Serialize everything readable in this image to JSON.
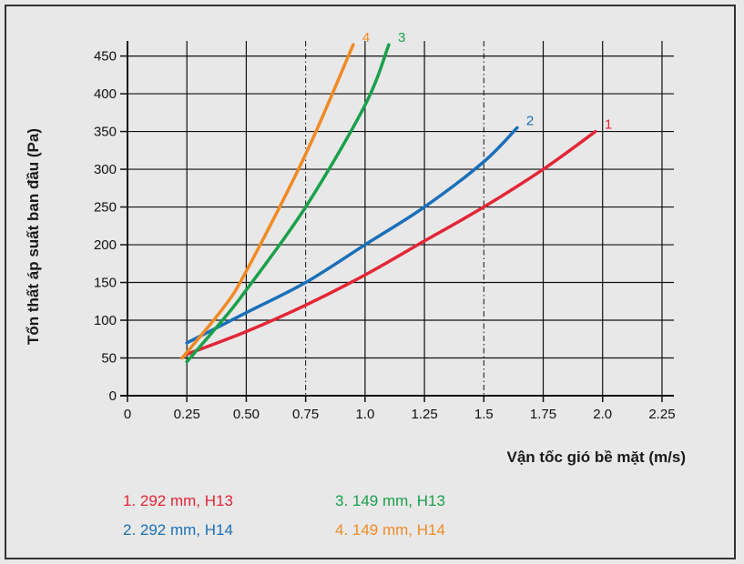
{
  "chart_data": {
    "type": "line",
    "title": "",
    "xlabel": "Vận tốc gió bề mặt (m/s)",
    "ylabel": "Tổn thất áp suất ban đầu (Pa)",
    "xlim": [
      0,
      2.3
    ],
    "ylim": [
      0,
      470
    ],
    "x_ticks": [
      "0",
      "0.25",
      "0.50",
      "0.75",
      "1.0",
      "1.25",
      "1.5",
      "1.75",
      "2.0",
      "2.25"
    ],
    "x_tick_values": [
      0,
      0.25,
      0.5,
      0.75,
      1.0,
      1.25,
      1.5,
      1.75,
      2.0,
      2.25
    ],
    "y_ticks": [
      "0",
      "50",
      "100",
      "150",
      "200",
      "250",
      "300",
      "350",
      "400",
      "450"
    ],
    "y_tick_values": [
      0,
      50,
      100,
      150,
      200,
      250,
      300,
      350,
      400,
      450
    ],
    "dashed_x": [
      0.75,
      1.5
    ],
    "grid": true,
    "series": [
      {
        "label": "1",
        "color": "#e32636",
        "x": [
          0.25,
          0.5,
          0.75,
          1.0,
          1.25,
          1.5,
          1.75,
          1.97
        ],
        "y": [
          55,
          85,
          120,
          160,
          205,
          250,
          300,
          350
        ]
      },
      {
        "label": "2",
        "color": "#1a6fb9",
        "x": [
          0.25,
          0.5,
          0.75,
          1.0,
          1.25,
          1.5,
          1.64
        ],
        "y": [
          70,
          110,
          150,
          200,
          250,
          310,
          355
        ]
      },
      {
        "label": "3",
        "color": "#1aa04b",
        "x": [
          0.25,
          0.4,
          0.5,
          0.75,
          1.0,
          1.1
        ],
        "y": [
          45,
          100,
          140,
          250,
          385,
          465
        ]
      },
      {
        "label": "4",
        "color": "#f08a24",
        "x": [
          0.23,
          0.4,
          0.5,
          0.75,
          0.95
        ],
        "y": [
          50,
          115,
          165,
          320,
          465
        ]
      }
    ]
  },
  "legend": [
    {
      "text": "1. 292 mm, H13",
      "color": "#e32636"
    },
    {
      "text": "3. 149 mm, H13",
      "color": "#1aa04b"
    },
    {
      "text": "2. 292 mm, H14",
      "color": "#1a6fb9"
    },
    {
      "text": "4. 149 mm, H14",
      "color": "#f08a24"
    }
  ]
}
